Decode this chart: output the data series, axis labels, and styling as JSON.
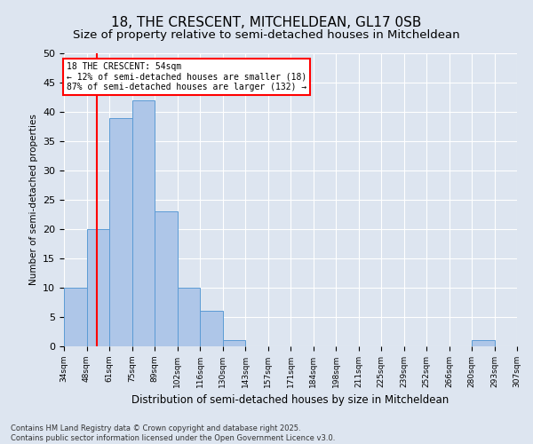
{
  "title": "18, THE CRESCENT, MITCHELDEAN, GL17 0SB",
  "subtitle": "Size of property relative to semi-detached houses in Mitcheldean",
  "xlabel": "Distribution of semi-detached houses by size in Mitcheldean",
  "ylabel": "Number of semi-detached properties",
  "bins": [
    "34sqm",
    "48sqm",
    "61sqm",
    "75sqm",
    "89sqm",
    "102sqm",
    "116sqm",
    "130sqm",
    "143sqm",
    "157sqm",
    "171sqm",
    "184sqm",
    "198sqm",
    "211sqm",
    "225sqm",
    "239sqm",
    "252sqm",
    "266sqm",
    "280sqm",
    "293sqm",
    "307sqm"
  ],
  "values": [
    10,
    20,
    39,
    42,
    23,
    10,
    6,
    1,
    0,
    0,
    0,
    0,
    0,
    0,
    0,
    0,
    0,
    0,
    1,
    0
  ],
  "bar_color": "#aec6e8",
  "bar_edge_color": "#5b9bd5",
  "red_line_x": 1.38,
  "annotation_line1": "18 THE CRESCENT: 54sqm",
  "annotation_line2": "← 12% of semi-detached houses are smaller (18)",
  "annotation_line3": "87% of semi-detached houses are larger (132) →",
  "ylim": [
    0,
    50
  ],
  "yticks": [
    0,
    5,
    10,
    15,
    20,
    25,
    30,
    35,
    40,
    45,
    50
  ],
  "footer": "Contains HM Land Registry data © Crown copyright and database right 2025.\nContains public sector information licensed under the Open Government Licence v3.0.",
  "bg_color": "#dde5f0",
  "plot_bg_color": "#dde5f0",
  "title_fontsize": 11,
  "subtitle_fontsize": 9.5
}
